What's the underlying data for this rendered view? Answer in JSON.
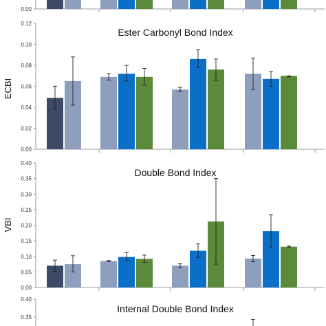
{
  "palette": {
    "dark_slate": "#3d4a66",
    "slate_blue": "#8d9fbd",
    "blue": "#0a6fc8",
    "green": "#5b8a3a",
    "axis": "#9a9a9a",
    "error_bar": "#222222"
  },
  "chart_data": [
    {
      "type": "bar",
      "title": "",
      "xlabel": "",
      "ylabel": "",
      "ylim": [
        0,
        0.04
      ],
      "yticks": [
        "0.00"
      ],
      "grid": false,
      "legend": "none",
      "partial": true,
      "groups": [
        {
          "bars": [
            {
              "color": "dark_slate"
            },
            {
              "color": "slate_blue"
            }
          ]
        },
        {
          "bars": [
            {
              "color": "slate_blue"
            },
            {
              "color": "blue"
            },
            {
              "color": "green"
            }
          ]
        },
        {
          "bars": [
            {
              "color": "slate_blue"
            },
            {
              "color": "blue"
            },
            {
              "color": "green"
            }
          ]
        },
        {
          "bars": [
            {
              "color": "slate_blue"
            },
            {
              "color": "blue"
            },
            {
              "color": "green"
            }
          ]
        }
      ]
    },
    {
      "type": "bar",
      "title": "Ester Carbonyl Bond Index",
      "xlabel": "",
      "ylabel": "ECBI",
      "ylim": [
        0,
        0.12
      ],
      "yticks": [
        "0.00",
        "0.02",
        "0.04",
        "0.06",
        "0.08",
        "0.10",
        "0.12"
      ],
      "grid": false,
      "legend": "none",
      "groups": [
        {
          "bars": [
            {
              "color": "dark_slate",
              "value": 0.049,
              "err": [
                0.038,
                0.06
              ]
            },
            {
              "color": "slate_blue",
              "value": 0.065,
              "err": [
                0.042,
                0.088
              ]
            }
          ]
        },
        {
          "bars": [
            {
              "color": "slate_blue",
              "value": 0.069,
              "err": [
                0.066,
                0.072
              ]
            },
            {
              "color": "blue",
              "value": 0.072,
              "err": [
                0.065,
                0.08
              ]
            },
            {
              "color": "green",
              "value": 0.069,
              "err": [
                0.061,
                0.077
              ]
            }
          ]
        },
        {
          "bars": [
            {
              "color": "slate_blue",
              "value": 0.057,
              "err": [
                0.055,
                0.059
              ]
            },
            {
              "color": "blue",
              "value": 0.086,
              "err": [
                0.078,
                0.095
              ]
            },
            {
              "color": "green",
              "value": 0.076,
              "err": [
                0.066,
                0.086
              ]
            }
          ]
        },
        {
          "bars": [
            {
              "color": "slate_blue",
              "value": 0.072,
              "err": [
                0.057,
                0.087
              ]
            },
            {
              "color": "blue",
              "value": 0.067,
              "err": [
                0.06,
                0.074
              ]
            },
            {
              "color": "green",
              "value": 0.07,
              "err": [
                0.069,
                0.07
              ]
            }
          ]
        }
      ]
    },
    {
      "type": "bar",
      "title": "Double Bond Index",
      "xlabel": "",
      "ylabel": "VBI",
      "ylim": [
        0,
        0.4
      ],
      "yticks": [
        "0.00",
        "0.05",
        "0.10",
        "0.15",
        "0.20",
        "0.25",
        "0.30",
        "0.35",
        "0.40"
      ],
      "grid": false,
      "legend": "none",
      "groups": [
        {
          "bars": [
            {
              "color": "dark_slate",
              "value": 0.07,
              "err": [
                0.052,
                0.088
              ]
            },
            {
              "color": "slate_blue",
              "value": 0.075,
              "err": [
                0.05,
                0.102
              ]
            }
          ]
        },
        {
          "bars": [
            {
              "color": "slate_blue",
              "value": 0.085,
              "err": [
                0.083,
                0.087
              ]
            },
            {
              "color": "blue",
              "value": 0.098,
              "err": [
                0.086,
                0.112
              ]
            },
            {
              "color": "green",
              "value": 0.092,
              "err": [
                0.081,
                0.104
              ]
            }
          ]
        },
        {
          "bars": [
            {
              "color": "slate_blue",
              "value": 0.07,
              "err": [
                0.064,
                0.076
              ]
            },
            {
              "color": "blue",
              "value": 0.118,
              "err": [
                0.097,
                0.14
              ]
            },
            {
              "color": "green",
              "value": 0.212,
              "err": [
                0.075,
                0.35
              ]
            }
          ]
        },
        {
          "bars": [
            {
              "color": "slate_blue",
              "value": 0.093,
              "err": [
                0.083,
                0.103
              ]
            },
            {
              "color": "blue",
              "value": 0.181,
              "err": [
                0.128,
                0.234
              ]
            },
            {
              "color": "green",
              "value": 0.131,
              "err": [
                0.13,
                0.133
              ]
            }
          ]
        }
      ]
    },
    {
      "type": "bar",
      "title": "Internal Double Bond Index",
      "xlabel": "",
      "ylabel": "",
      "ylim": [
        0,
        0.4
      ],
      "yticks": [
        "0.35",
        "0.40"
      ],
      "grid": false,
      "legend": "none",
      "partial": true,
      "groups": [
        {
          "bars": []
        },
        {
          "bars": []
        },
        {
          "bars": []
        },
        {
          "bars": [
            {
              "color": "blue",
              "err": [
                null,
                0.343
              ]
            }
          ]
        }
      ]
    }
  ]
}
